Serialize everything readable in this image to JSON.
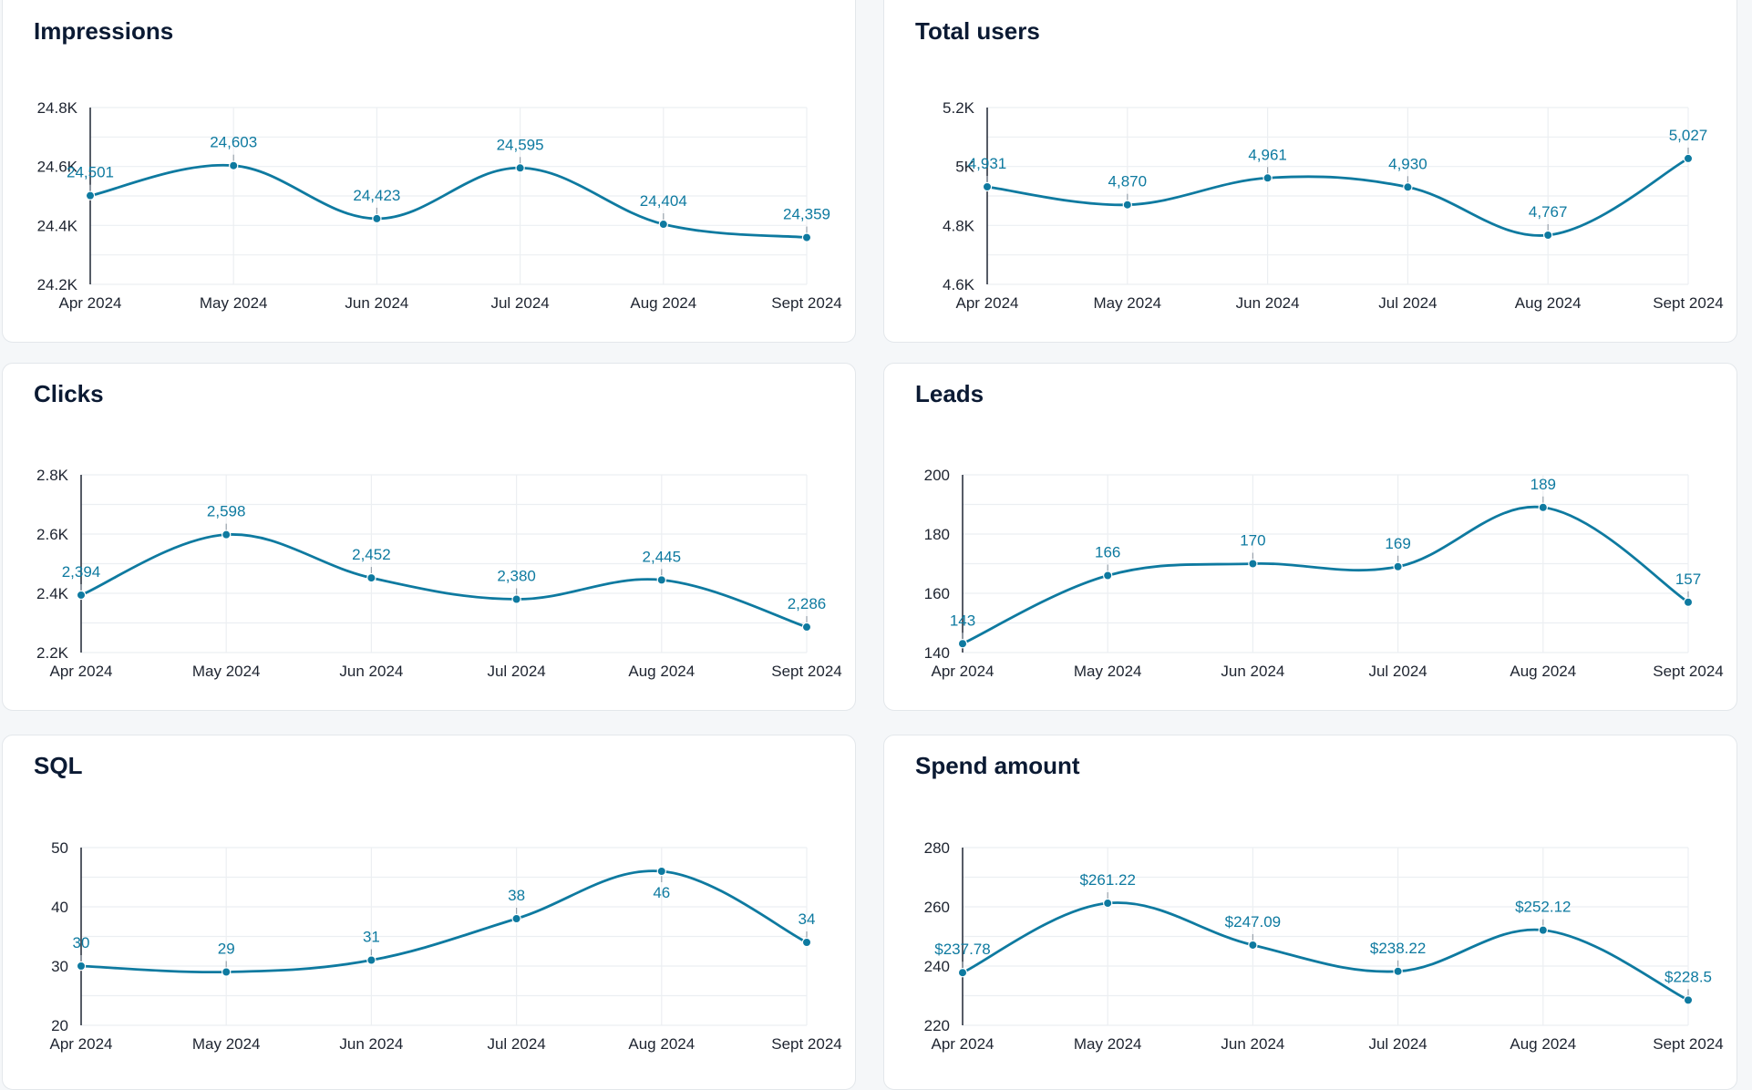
{
  "theme": {
    "line_color": "#0e7aa0",
    "label_color": "#0e7aa0",
    "tick_color": "#9aa3ad"
  },
  "chart_data": [
    {
      "type": "line",
      "title": "Impressions",
      "categories": [
        "Apr 2024",
        "May 2024",
        "Jun 2024",
        "Jul 2024",
        "Aug 2024",
        "Sept 2024"
      ],
      "values": [
        24501,
        24603,
        24423,
        24595,
        24404,
        24359
      ],
      "value_labels": [
        "24,501",
        "24,603",
        "24,423",
        "24,595",
        "24,404",
        "24,359"
      ],
      "ylim": [
        24200,
        24800
      ],
      "yticks": [
        24200,
        24400,
        24600,
        24800
      ],
      "ytick_labels": [
        "24.2K",
        "24.4K",
        "24.6K",
        "24.8K"
      ],
      "xlabel": "",
      "ylabel": "",
      "grid": true
    },
    {
      "type": "line",
      "title": "Total users",
      "categories": [
        "Apr 2024",
        "May 2024",
        "Jun 2024",
        "Jul 2024",
        "Aug 2024",
        "Sept 2024"
      ],
      "values": [
        4931,
        4870,
        4961,
        4930,
        4767,
        5027
      ],
      "value_labels": [
        "4,931",
        "4,870",
        "4,961",
        "4,930",
        "4,767",
        "5,027"
      ],
      "ylim": [
        4600,
        5200
      ],
      "yticks": [
        4600,
        4800,
        5000,
        5200
      ],
      "ytick_labels": [
        "4.6K",
        "4.8K",
        "5K",
        "5.2K"
      ],
      "xlabel": "",
      "ylabel": "",
      "grid": true
    },
    {
      "type": "line",
      "title": "Clicks",
      "categories": [
        "Apr 2024",
        "May 2024",
        "Jun 2024",
        "Jul 2024",
        "Aug 2024",
        "Sept 2024"
      ],
      "values": [
        2394,
        2598,
        2452,
        2380,
        2445,
        2286
      ],
      "value_labels": [
        "2,394",
        "2,598",
        "2,452",
        "2,380",
        "2,445",
        "2,286"
      ],
      "ylim": [
        2200,
        2800
      ],
      "yticks": [
        2200,
        2400,
        2600,
        2800
      ],
      "ytick_labels": [
        "2.2K",
        "2.4K",
        "2.6K",
        "2.8K"
      ],
      "xlabel": "",
      "ylabel": "",
      "grid": true
    },
    {
      "type": "line",
      "title": "Leads",
      "categories": [
        "Apr 2024",
        "May 2024",
        "Jun 2024",
        "Jul 2024",
        "Aug 2024",
        "Sept 2024"
      ],
      "values": [
        143,
        166,
        170,
        169,
        189,
        157
      ],
      "value_labels": [
        "143",
        "166",
        "170",
        "169",
        "189",
        "157"
      ],
      "ylim": [
        140,
        200
      ],
      "yticks": [
        140,
        160,
        180,
        200
      ],
      "ytick_labels": [
        "140",
        "160",
        "180",
        "200"
      ],
      "xlabel": "",
      "ylabel": "",
      "grid": true
    },
    {
      "type": "line",
      "title": "SQL",
      "categories": [
        "Apr 2024",
        "May 2024",
        "Jun 2024",
        "Jul 2024",
        "Aug 2024",
        "Sept 2024"
      ],
      "values": [
        30,
        29,
        31,
        38,
        46,
        34
      ],
      "value_labels": [
        "30",
        "29",
        "31",
        "38",
        "46",
        "34"
      ],
      "label_below_index": 4,
      "ylim": [
        20,
        50
      ],
      "yticks": [
        20,
        30,
        40,
        50
      ],
      "ytick_labels": [
        "20",
        "30",
        "40",
        "50"
      ],
      "xlabel": "",
      "ylabel": "",
      "grid": true
    },
    {
      "type": "line",
      "title": "Spend amount",
      "categories": [
        "Apr 2024",
        "May 2024",
        "Jun 2024",
        "Jul 2024",
        "Aug 2024",
        "Sept 2024"
      ],
      "values": [
        237.78,
        261.22,
        247.09,
        238.22,
        252.12,
        228.5
      ],
      "value_labels": [
        "$237.78",
        "$261.22",
        "$247.09",
        "$238.22",
        "$252.12",
        "$228.5"
      ],
      "ylim": [
        220,
        280
      ],
      "yticks": [
        220,
        240,
        260,
        280
      ],
      "ytick_labels": [
        "220",
        "240",
        "260",
        "280"
      ],
      "xlabel": "",
      "ylabel": "",
      "grid": true
    }
  ]
}
